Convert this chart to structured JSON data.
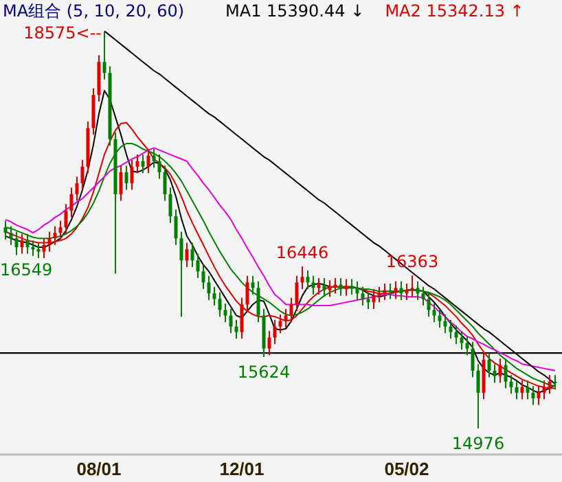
{
  "chart_data": {
    "type": "candlestick",
    "title": "MA组合 (5, 10, 20, 60)",
    "categories": [
      null,
      null,
      null,
      null,
      null,
      null,
      null,
      null,
      null,
      null,
      null,
      null,
      null,
      null,
      null,
      null,
      null,
      "08/01",
      null,
      null,
      null,
      null,
      null,
      null,
      null,
      null,
      null,
      null,
      null,
      null,
      null,
      null,
      null,
      null,
      null,
      null,
      null,
      null,
      null,
      null,
      null,
      null,
      null,
      "12/01",
      null,
      null,
      null,
      null,
      null,
      null,
      null,
      null,
      null,
      null,
      null,
      null,
      null,
      null,
      null,
      null,
      null,
      null,
      null,
      null,
      null,
      null,
      null,
      null,
      null,
      null,
      null,
      null,
      null,
      "05/02",
      null,
      null,
      null,
      null,
      null,
      null,
      null,
      null,
      null,
      null,
      null,
      null,
      null,
      null,
      null,
      null,
      null,
      null,
      null,
      null,
      null,
      null,
      null,
      null,
      null,
      null,
      null
    ],
    "ohlc": [
      [
        16800,
        16860,
        16690,
        16750
      ],
      [
        16750,
        16810,
        16640,
        16700
      ],
      [
        16700,
        16760,
        16549,
        16620
      ],
      [
        16620,
        16740,
        16560,
        16680
      ],
      [
        16680,
        16740,
        16560,
        16620
      ],
      [
        16620,
        16680,
        16540,
        16600
      ],
      [
        16600,
        16660,
        16520,
        16580
      ],
      [
        16580,
        16700,
        16520,
        16640
      ],
      [
        16640,
        16760,
        16580,
        16700
      ],
      [
        16700,
        16810,
        16640,
        16750
      ],
      [
        16750,
        16860,
        16690,
        16800
      ],
      [
        16800,
        17010,
        16740,
        16950
      ],
      [
        16950,
        17160,
        16890,
        17100
      ],
      [
        17100,
        17260,
        17040,
        17200
      ],
      [
        17200,
        17410,
        17140,
        17350
      ],
      [
        17350,
        17760,
        17290,
        17700
      ],
      [
        17700,
        18060,
        17640,
        18000
      ],
      [
        18000,
        18360,
        17940,
        18300
      ],
      [
        18300,
        18575,
        18140,
        18200
      ],
      [
        18200,
        18260,
        17540,
        17600
      ],
      [
        17600,
        17660,
        16380,
        17100
      ],
      [
        17100,
        17360,
        17040,
        17300
      ],
      [
        17300,
        17360,
        17140,
        17200
      ],
      [
        17200,
        17410,
        17140,
        17350
      ],
      [
        17350,
        17460,
        17290,
        17400
      ],
      [
        17400,
        17460,
        17290,
        17350
      ],
      [
        17350,
        17510,
        17290,
        17450
      ],
      [
        17450,
        17510,
        17340,
        17400
      ],
      [
        17400,
        17460,
        17240,
        17300
      ],
      [
        17300,
        17360,
        17040,
        17100
      ],
      [
        17100,
        17160,
        16840,
        16900
      ],
      [
        16900,
        16960,
        16640,
        16700
      ],
      [
        16700,
        16760,
        15990,
        16500
      ],
      [
        16500,
        16660,
        16440,
        16600
      ],
      [
        16600,
        16660,
        16440,
        16500
      ],
      [
        16500,
        16560,
        16340,
        16400
      ],
      [
        16400,
        16460,
        16240,
        16300
      ],
      [
        16300,
        16360,
        16140,
        16200
      ],
      [
        16200,
        16260,
        16090,
        16150
      ],
      [
        16150,
        16210,
        15990,
        16050
      ],
      [
        16050,
        16110,
        15940,
        16000
      ],
      [
        16000,
        16060,
        15840,
        15900
      ],
      [
        15900,
        15960,
        15790,
        15850
      ],
      [
        15850,
        16160,
        15790,
        16100
      ],
      [
        16100,
        16360,
        16040,
        16300
      ],
      [
        16300,
        16360,
        16190,
        16250
      ],
      [
        16250,
        16310,
        15940,
        16000
      ],
      [
        16000,
        16060,
        15624,
        15700
      ],
      [
        15700,
        15860,
        15640,
        15800
      ],
      [
        15800,
        15960,
        15740,
        15900
      ],
      [
        15900,
        16010,
        15840,
        15950
      ],
      [
        15950,
        16060,
        15890,
        16000
      ],
      [
        16000,
        16160,
        15940,
        16100
      ],
      [
        16100,
        16360,
        16040,
        16300
      ],
      [
        16300,
        16446,
        16240,
        16350
      ],
      [
        16350,
        16410,
        16240,
        16300
      ],
      [
        16300,
        16360,
        16190,
        16250
      ],
      [
        16250,
        16340,
        16190,
        16280
      ],
      [
        16280,
        16340,
        16170,
        16230
      ],
      [
        16230,
        16320,
        16170,
        16260
      ],
      [
        16260,
        16340,
        16200,
        16280
      ],
      [
        16280,
        16340,
        16180,
        16240
      ],
      [
        16240,
        16330,
        16180,
        16270
      ],
      [
        16270,
        16330,
        16190,
        16250
      ],
      [
        16250,
        16310,
        16140,
        16200
      ],
      [
        16200,
        16260,
        16090,
        16150
      ],
      [
        16150,
        16210,
        16060,
        16120
      ],
      [
        16120,
        16240,
        16060,
        16180
      ],
      [
        16180,
        16260,
        16120,
        16200
      ],
      [
        16200,
        16290,
        16140,
        16230
      ],
      [
        16230,
        16290,
        16150,
        16210
      ],
      [
        16210,
        16310,
        16150,
        16250
      ],
      [
        16250,
        16310,
        16140,
        16200
      ],
      [
        16200,
        16290,
        16140,
        16230
      ],
      [
        16230,
        16363,
        16170,
        16250
      ],
      [
        16250,
        16310,
        16140,
        16200
      ],
      [
        16200,
        16260,
        16090,
        16150
      ],
      [
        16150,
        16210,
        15990,
        16050
      ],
      [
        16050,
        16110,
        15940,
        16000
      ],
      [
        16000,
        16060,
        15890,
        15950
      ],
      [
        15950,
        16010,
        15840,
        15900
      ],
      [
        15900,
        15960,
        15790,
        15850
      ],
      [
        15850,
        15910,
        15740,
        15800
      ],
      [
        15800,
        15860,
        15690,
        15750
      ],
      [
        15750,
        15810,
        15640,
        15700
      ],
      [
        15700,
        15760,
        15440,
        15500
      ],
      [
        15500,
        15560,
        14976,
        15300
      ],
      [
        15300,
        15660,
        15240,
        15600
      ],
      [
        15600,
        15660,
        15440,
        15500
      ],
      [
        15500,
        15560,
        15390,
        15450
      ],
      [
        15450,
        15610,
        15390,
        15550
      ],
      [
        15550,
        15610,
        15340,
        15400
      ],
      [
        15400,
        15460,
        15290,
        15350
      ],
      [
        15350,
        15410,
        15240,
        15300
      ],
      [
        15300,
        15410,
        15240,
        15350
      ],
      [
        15350,
        15410,
        15240,
        15300
      ],
      [
        15300,
        15360,
        15190,
        15250
      ],
      [
        15250,
        15360,
        15190,
        15300
      ],
      [
        15300,
        15410,
        15240,
        15350
      ],
      [
        15350,
        15460,
        15290,
        15400
      ],
      [
        15400,
        15460,
        15330,
        15390
      ]
    ],
    "series": [
      {
        "type": "line",
        "name": "MA1 15390.44 ↓",
        "color": "#000000",
        "values": [
          16720,
          16700,
          16680,
          16670,
          16660,
          16640,
          16620,
          16620,
          16640,
          16670,
          16700,
          16770,
          16870,
          16990,
          17140,
          17320,
          17550,
          17830,
          18040,
          17960,
          17800,
          17640,
          17460,
          17310,
          17300,
          17320,
          17350,
          17390,
          17380,
          17330,
          17230,
          17080,
          16880,
          16720,
          16640,
          16540,
          16460,
          16400,
          16320,
          16240,
          16160,
          16080,
          16000,
          15980,
          16040,
          16100,
          16140,
          16130,
          16010,
          15880,
          15870,
          15880,
          15950,
          16060,
          16180,
          16260,
          16280,
          16290,
          16280,
          16260,
          16260,
          16260,
          16260,
          16260,
          16250,
          16230,
          16200,
          16180,
          16170,
          16180,
          16200,
          16220,
          16220,
          16230,
          16230,
          16230,
          16220,
          16170,
          16120,
          16060,
          15990,
          15930,
          15870,
          15820,
          15770,
          15710,
          15590,
          15520,
          15480,
          15460,
          15480,
          15460,
          15440,
          15410,
          15370,
          15350,
          15320,
          15300,
          15320,
          15340,
          15370
        ]
      },
      {
        "type": "line",
        "name": "MA2 15342.13 ↑",
        "color": "#e00000",
        "values": [
          16760,
          16740,
          16720,
          16700,
          16680,
          16670,
          16660,
          16660,
          16660,
          16670,
          16680,
          16700,
          16740,
          16800,
          16880,
          16980,
          17120,
          17290,
          17460,
          17580,
          17680,
          17740,
          17750,
          17690,
          17620,
          17560,
          17500,
          17420,
          17380,
          17340,
          17280,
          17190,
          17080,
          16950,
          16840,
          16740,
          16640,
          16540,
          16440,
          16350,
          16270,
          16200,
          16130,
          16080,
          16040,
          16010,
          15990,
          15990,
          16000,
          15990,
          15970,
          15950,
          15960,
          16000,
          16060,
          16120,
          16170,
          16210,
          16240,
          16260,
          16260,
          16260,
          16260,
          16260,
          16250,
          16240,
          16220,
          16210,
          16200,
          16200,
          16200,
          16210,
          16220,
          16230,
          16230,
          16230,
          16220,
          16200,
          16170,
          16130,
          16090,
          16040,
          15990,
          15930,
          15880,
          15820,
          15740,
          15670,
          15610,
          15570,
          15540,
          15510,
          15480,
          15450,
          15420,
          15400,
          15380,
          15360,
          15350,
          15340,
          15340
        ]
      },
      {
        "type": "line",
        "color": "#008000",
        "values": [
          16800,
          16790,
          16770,
          16750,
          16730,
          16710,
          16700,
          16700,
          16700,
          16710,
          16720,
          16740,
          16770,
          16810,
          16860,
          16930,
          17020,
          17130,
          17260,
          17380,
          17470,
          17530,
          17560,
          17560,
          17540,
          17510,
          17490,
          17470,
          17440,
          17400,
          17350,
          17290,
          17220,
          17130,
          17040,
          16950,
          16860,
          16760,
          16670,
          16580,
          16500,
          16420,
          16360,
          16300,
          16250,
          16210,
          16180,
          16150,
          16120,
          16080,
          16040,
          16010,
          16000,
          16010,
          16030,
          16060,
          16100,
          16140,
          16180,
          16210,
          16230,
          16250,
          16250,
          16250,
          16250,
          16240,
          16240,
          16230,
          16220,
          16220,
          16220,
          16220,
          16220,
          16230,
          16230,
          16230,
          16220,
          16210,
          16190,
          16170,
          16140,
          16100,
          16050,
          16000,
          15950,
          15900,
          15840,
          15790,
          15740,
          15690,
          15640,
          15600,
          15560,
          15520,
          15490,
          15460,
          15430,
          15410,
          15390,
          15370,
          15360
        ]
      },
      {
        "type": "line",
        "color": "#e000e0",
        "values": [
          16870,
          16850,
          16820,
          16800,
          16780,
          16750,
          16780,
          16820,
          16850,
          16890,
          16920,
          16960,
          16990,
          17030,
          17060,
          17110,
          17160,
          17210,
          17260,
          17310,
          17340,
          17360,
          17390,
          17420,
          17440,
          17470,
          17500,
          17520,
          17500,
          17480,
          17460,
          17440,
          17420,
          17400,
          17330,
          17270,
          17200,
          17140,
          17070,
          17000,
          16940,
          16870,
          16780,
          16700,
          16610,
          16530,
          16440,
          16360,
          16270,
          16190,
          16150,
          16100,
          16100,
          16100,
          16100,
          16100,
          16090,
          16090,
          16090,
          16090,
          16100,
          16110,
          16120,
          16130,
          16140,
          16150,
          16160,
          16170,
          16180,
          16190,
          16190,
          16180,
          16180,
          16170,
          16170,
          16170,
          16160,
          16120,
          16080,
          16030,
          15990,
          15940,
          15900,
          15850,
          15810,
          15790,
          15760,
          15740,
          15710,
          15690,
          15660,
          15640,
          15610,
          15590,
          15560,
          15550,
          15540,
          15530,
          15520,
          15510,
          15500
        ]
      },
      {
        "type": "line",
        "color": "#000000",
        "values": [
          null,
          null,
          null,
          null,
          null,
          null,
          null,
          null,
          null,
          null,
          null,
          null,
          null,
          null,
          null,
          null,
          null,
          null,
          18580,
          18540,
          18500,
          18460,
          18420,
          18380,
          18340,
          18300,
          18260,
          18220,
          18190,
          18150,
          18110,
          18070,
          18030,
          17990,
          17950,
          17910,
          17870,
          17830,
          17800,
          17760,
          17720,
          17680,
          17640,
          17600,
          17560,
          17520,
          17480,
          17440,
          17410,
          17370,
          17330,
          17290,
          17250,
          17210,
          17170,
          17130,
          17090,
          17050,
          17020,
          16980,
          16940,
          16900,
          16860,
          16820,
          16780,
          16740,
          16700,
          16660,
          16630,
          16590,
          16550,
          16510,
          16470,
          16430,
          16390,
          16350,
          16310,
          16270,
          16240,
          16200,
          16160,
          16120,
          16080,
          16040,
          16000,
          15960,
          15920,
          15880,
          15850,
          15810,
          15770,
          15730,
          15690,
          15650,
          15610,
          15570,
          15530,
          15490,
          15460,
          15420,
          15380
        ]
      }
    ],
    "ref_lines": [
      {
        "axis": "y",
        "value": 15660,
        "color": "#000000"
      }
    ],
    "tick_labels": "x",
    "legend": "top",
    "annotations": [
      "18575<--",
      {
        "text": "16549",
        "y": 16549
      },
      {
        "text": "16446",
        "y": 16446
      },
      {
        "text": "16363",
        "y": 16363
      },
      {
        "text": "15624",
        "y": 15624
      },
      {
        "text": "14976",
        "y": 14976
      }
    ]
  }
}
